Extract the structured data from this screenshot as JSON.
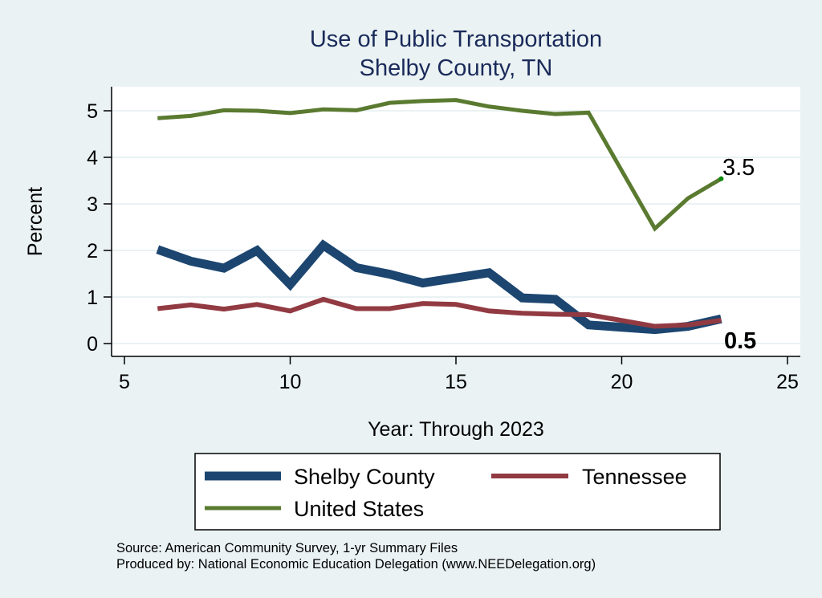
{
  "chart_data": {
    "type": "line",
    "title": "Use of Public Transportation",
    "subtitle": "Shelby County, TN",
    "xlabel": "Year: Through 2023",
    "ylabel": "Percent",
    "xlim": [
      5,
      25
    ],
    "ylim": [
      0,
      5
    ],
    "xticks": [
      5,
      10,
      15,
      20,
      25
    ],
    "yticks": [
      0,
      1,
      2,
      3,
      4,
      5
    ],
    "grid": true,
    "legend_position": "bottom",
    "series": [
      {
        "name": "Shelby County",
        "color": "#1c4670",
        "x": [
          6,
          7,
          8,
          9,
          10,
          11,
          12,
          13,
          14,
          15,
          16,
          17,
          18,
          19,
          21,
          22,
          23
        ],
        "values": [
          2.02,
          1.77,
          1.62,
          2.0,
          1.27,
          2.11,
          1.63,
          1.49,
          1.3,
          1.41,
          1.52,
          0.98,
          0.95,
          0.4,
          0.3,
          0.37,
          0.53
        ]
      },
      {
        "name": "Tennessee",
        "color": "#923a42",
        "x": [
          6,
          7,
          8,
          9,
          10,
          11,
          12,
          13,
          14,
          15,
          16,
          17,
          18,
          19,
          21,
          22,
          23
        ],
        "values": [
          0.75,
          0.83,
          0.74,
          0.84,
          0.7,
          0.95,
          0.75,
          0.75,
          0.86,
          0.84,
          0.7,
          0.65,
          0.63,
          0.62,
          0.37,
          0.4,
          0.5
        ]
      },
      {
        "name": "United States",
        "color": "#5a7a30",
        "x": [
          6,
          7,
          8,
          9,
          10,
          11,
          12,
          13,
          14,
          15,
          16,
          17,
          18,
          19,
          21,
          22,
          23
        ],
        "values": [
          4.84,
          4.89,
          5.01,
          5.0,
          4.95,
          5.03,
          5.01,
          5.17,
          5.21,
          5.23,
          5.09,
          5.0,
          4.93,
          4.96,
          2.47,
          3.12,
          3.54
        ]
      }
    ],
    "annotations": [
      "3.5",
      "0.5"
    ],
    "notes": [
      "Source: American Community Survey, 1-yr Summary Files",
      "Produced by: National Economic Education Delegation (www.NEEDelegation.org)"
    ]
  }
}
